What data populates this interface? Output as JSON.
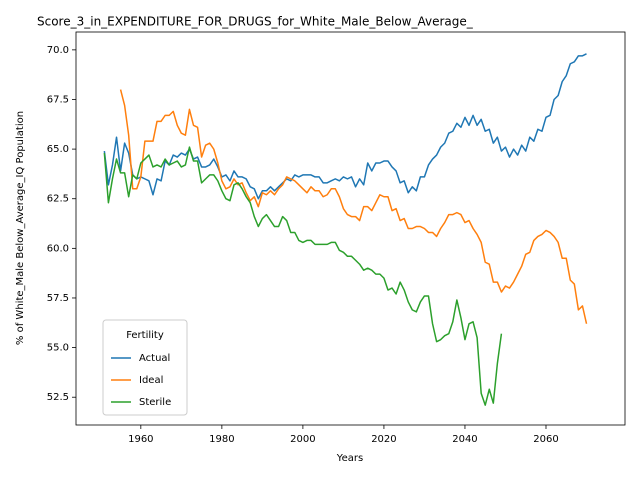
{
  "chart_data": {
    "type": "line",
    "title": "Score_3_in_EXPENDITURE_FOR_DRUGS_for_White_Male_Below_Average_",
    "xlabel": "Years",
    "ylabel": "% of White_Male Below_Average_IQ Population",
    "legend_title": "Fertility",
    "legend_position": "lower left",
    "x": [
      1951,
      1952,
      1953,
      1954,
      1955,
      1956,
      1957,
      1958,
      1959,
      1960,
      1961,
      1962,
      1963,
      1964,
      1965,
      1966,
      1967,
      1968,
      1969,
      1970,
      1971,
      1972,
      1973,
      1974,
      1975,
      1976,
      1977,
      1978,
      1979,
      1980,
      1981,
      1982,
      1983,
      1984,
      1985,
      1986,
      1987,
      1988,
      1989,
      1990,
      1991,
      1992,
      1993,
      1994,
      1995,
      1996,
      1997,
      1998,
      1999,
      2000,
      2001,
      2002,
      2003,
      2004,
      2005,
      2006,
      2007,
      2008,
      2009,
      2010,
      2011,
      2012,
      2013,
      2014,
      2015,
      2016,
      2017,
      2018,
      2019,
      2020,
      2021,
      2022,
      2023,
      2024,
      2025,
      2026,
      2027,
      2028,
      2029,
      2030,
      2031,
      2032,
      2033,
      2034,
      2035,
      2036,
      2037,
      2038,
      2039,
      2040,
      2041,
      2042,
      2043,
      2044,
      2045,
      2046,
      2047,
      2048,
      2049,
      2050,
      2051,
      2052,
      2053,
      2054,
      2055,
      2056,
      2057,
      2058,
      2059,
      2060,
      2061,
      2062,
      2063,
      2064,
      2065,
      2066,
      2067,
      2068,
      2069,
      2070
    ],
    "series": [
      {
        "name": "Actual",
        "color": "#1f77b4",
        "values": [
          64.9,
          63.2,
          64.2,
          65.6,
          63.9,
          65.3,
          64.8,
          63.7,
          63.5,
          63.6,
          63.5,
          63.4,
          62.7,
          63.5,
          63.4,
          64.4,
          64.2,
          64.7,
          64.6,
          64.8,
          64.7,
          65.0,
          64.5,
          64.6,
          64.1,
          64.1,
          64.2,
          64.5,
          64.1,
          63.6,
          63.7,
          63.4,
          63.9,
          63.6,
          63.6,
          63.5,
          63.1,
          63.0,
          62.5,
          62.9,
          62.9,
          63.1,
          62.9,
          63.1,
          63.3,
          63.5,
          63.4,
          63.7,
          63.6,
          63.7,
          63.7,
          63.7,
          63.6,
          63.6,
          63.3,
          63.3,
          63.4,
          63.5,
          63.4,
          63.6,
          63.5,
          63.6,
          63.1,
          63.5,
          63.2,
          64.3,
          63.9,
          64.3,
          64.3,
          64.4,
          64.4,
          64.1,
          63.9,
          63.3,
          63.4,
          62.8,
          63.1,
          62.9,
          63.6,
          63.6,
          64.2,
          64.5,
          64.7,
          65.1,
          65.3,
          65.8,
          65.9,
          66.3,
          66.1,
          66.6,
          66.2,
          66.7,
          66.2,
          66.5,
          65.9,
          66.0,
          65.3,
          65.6,
          64.9,
          65.1,
          64.6,
          65.0,
          64.7,
          65.2,
          64.9,
          65.6,
          65.4,
          66.0,
          65.9,
          66.6,
          66.7,
          67.5,
          67.7,
          68.4,
          68.7,
          69.3,
          69.4,
          69.7,
          69.7,
          69.8
        ]
      },
      {
        "name": "Ideal",
        "color": "#ff7f0e",
        "values": [
          null,
          null,
          null,
          null,
          68.0,
          67.2,
          65.7,
          63.0,
          63.0,
          63.6,
          65.4,
          65.4,
          65.4,
          66.4,
          66.4,
          66.7,
          66.7,
          66.9,
          66.2,
          65.8,
          65.7,
          67.0,
          66.2,
          66.1,
          64.6,
          65.2,
          65.3,
          65.0,
          64.3,
          63.4,
          63.0,
          63.1,
          63.5,
          63.2,
          63.3,
          62.8,
          62.4,
          62.6,
          62.1,
          62.8,
          62.7,
          62.9,
          62.7,
          63.0,
          63.2,
          63.6,
          63.5,
          63.4,
          63.2,
          63.0,
          62.8,
          63.1,
          62.9,
          62.9,
          62.6,
          62.7,
          63.0,
          63.0,
          62.6,
          62.0,
          61.7,
          61.6,
          61.6,
          61.4,
          62.1,
          62.1,
          61.9,
          62.3,
          62.7,
          62.6,
          62.6,
          61.9,
          62.0,
          61.4,
          61.5,
          61.0,
          61.0,
          61.1,
          61.1,
          61.0,
          60.8,
          60.8,
          60.6,
          61.0,
          61.3,
          61.7,
          61.7,
          61.8,
          61.7,
          61.3,
          61.4,
          61.0,
          60.7,
          60.3,
          59.3,
          59.2,
          58.3,
          58.3,
          57.8,
          58.1,
          58.0,
          58.3,
          58.7,
          59.1,
          59.7,
          59.8,
          60.4,
          60.6,
          60.7,
          60.9,
          60.8,
          60.6,
          60.3,
          59.5,
          59.5,
          58.4,
          58.2,
          56.9,
          57.1,
          56.2
        ]
      },
      {
        "name": "Sterile",
        "color": "#2ca02c",
        "values": [
          64.8,
          62.3,
          63.5,
          64.5,
          63.8,
          63.8,
          62.6,
          63.7,
          63.5,
          64.3,
          64.5,
          64.7,
          64.1,
          64.2,
          64.1,
          64.5,
          64.2,
          64.3,
          64.4,
          64.1,
          64.2,
          65.1,
          64.4,
          64.4,
          63.3,
          63.5,
          63.7,
          63.7,
          63.4,
          62.9,
          62.5,
          62.4,
          63.2,
          63.3,
          63.0,
          62.6,
          62.3,
          61.6,
          61.1,
          61.5,
          61.7,
          61.4,
          61.1,
          61.1,
          61.6,
          61.4,
          60.8,
          60.8,
          60.4,
          60.3,
          60.4,
          60.4,
          60.2,
          60.2,
          60.2,
          60.2,
          60.3,
          60.3,
          59.9,
          59.8,
          59.6,
          59.6,
          59.4,
          59.2,
          58.9,
          59.0,
          58.9,
          58.7,
          58.7,
          58.5,
          57.9,
          58.0,
          57.7,
          58.3,
          57.9,
          57.3,
          56.9,
          56.8,
          57.3,
          57.6,
          57.6,
          56.2,
          55.3,
          55.4,
          55.6,
          55.7,
          56.3,
          57.4,
          56.5,
          55.4,
          56.2,
          56.3,
          55.5,
          52.7,
          52.1,
          52.9,
          52.2,
          54.2,
          55.7,
          null,
          null,
          null,
          null,
          null,
          null,
          null,
          null,
          null,
          null,
          null,
          null,
          null,
          null,
          null,
          null,
          null,
          null,
          null,
          null,
          null
        ]
      }
    ],
    "xlim": [
      1944,
      2079.5
    ],
    "ylim": [
      51.1,
      70.9
    ],
    "xticks": [
      1960,
      1980,
      2000,
      2020,
      2040,
      2060
    ],
    "yticks": [
      52.5,
      {
        "value": 55,
        "label": "55.0"
      },
      57.5,
      {
        "value": 60,
        "label": "60.0"
      },
      62.5,
      {
        "value": 65,
        "label": "65.0"
      },
      67.5,
      {
        "value": 70,
        "label": "70.0"
      }
    ],
    "grid": false
  }
}
